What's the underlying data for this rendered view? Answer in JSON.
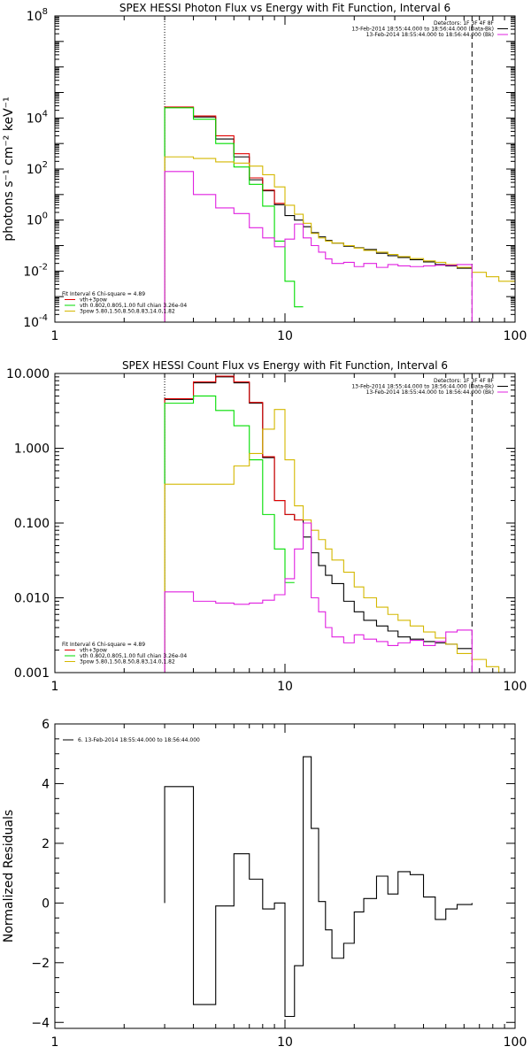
{
  "chart_data": [
    {
      "type": "line",
      "title": "SPEX HESSI Photon Flux vs Energy with Fit Function, Interval 6",
      "ylabel": "photons s⁻¹ cm⁻² keV⁻¹",
      "xlabel": "",
      "xscale": "log",
      "yscale": "log",
      "xlim": [
        1,
        100
      ],
      "ylim": [
        0.0001,
        100000000
      ],
      "xticks": [
        {
          "v": 1,
          "label": "1"
        },
        {
          "v": 10,
          "label": "10"
        },
        {
          "v": 100,
          "label": "100"
        }
      ],
      "yticks": [
        {
          "v": 0.0001,
          "b": "10",
          "e": "-4"
        },
        {
          "v": 0.01,
          "b": "10",
          "e": "-2"
        },
        {
          "v": 1,
          "b": "10",
          "e": "0"
        },
        {
          "v": 100,
          "b": "10",
          "e": "2"
        },
        {
          "v": 10000,
          "b": "10",
          "e": "4"
        },
        {
          "v": 100000000,
          "b": "10",
          "e": "8"
        }
      ],
      "vlines": [
        {
          "x": 3,
          "style": "dotted"
        },
        {
          "x": 65,
          "style": "dashed"
        }
      ],
      "legend_tr": [
        {
          "text": "Detectors: 1F 3F 4F 8F",
          "color": "",
          "line": false
        },
        {
          "text": "13-Feb-2014 18:55:44.000 to 18:56:44.000 (Data-Bk)",
          "color": "#000000",
          "line": true
        },
        {
          "text": "13-Feb-2014 18:55:44.000 to 18:56:44.000 (Bk)",
          "color": "#e020e0",
          "line": true
        }
      ],
      "legend_bl": [
        {
          "text": "Fit Interval  6    Chi-square = 4.89",
          "color": "",
          "line": false
        },
        {
          "text": "vth+3pow",
          "color": "#e00000",
          "line": true
        },
        {
          "text": "vth 0.802,0.805,1.00  full chian 3.26e-04",
          "color": "#00dd00",
          "line": true
        },
        {
          "text": "3pow 5.80,1.50,8.50,8.83,14.0,1.82",
          "color": "#d4b800",
          "line": true
        }
      ],
      "series": [
        {
          "color": "#000000",
          "edges": [
            3,
            4,
            5,
            6,
            7,
            8,
            9,
            10,
            11,
            12,
            13,
            14,
            15,
            16,
            18,
            20,
            22,
            25,
            28,
            31,
            35,
            40,
            45,
            50,
            56,
            65
          ],
          "values": [
            26000,
            11000,
            1500,
            300,
            38,
            14,
            4,
            1.5,
            1.0,
            0.55,
            0.32,
            0.22,
            0.16,
            0.125,
            0.095,
            0.082,
            0.07,
            0.05,
            0.04,
            0.034,
            0.028,
            0.023,
            0.018,
            0.016,
            0.013
          ]
        },
        {
          "color": "#e00000",
          "edges": [
            3,
            4,
            5,
            6,
            7,
            8,
            9,
            10
          ],
          "values": [
            27000,
            12000,
            2000,
            400,
            45,
            15,
            4.5
          ]
        },
        {
          "color": "#00dd00",
          "edges": [
            3,
            4,
            5,
            6,
            7,
            8,
            9,
            10,
            11,
            12
          ],
          "values": [
            25000,
            9000,
            1000,
            120,
            25,
            3.5,
            0.15,
            0.004,
            0.0004
          ]
        },
        {
          "color": "#d4b800",
          "edges": [
            3,
            4,
            5,
            6,
            7,
            8,
            9,
            10,
            11,
            12,
            13,
            14,
            15,
            16,
            18,
            20,
            22,
            25,
            28,
            31,
            35,
            40,
            45,
            50,
            56,
            65,
            75,
            85,
            100
          ],
          "values": [
            300,
            260,
            190,
            170,
            130,
            60,
            20,
            3.8,
            1.7,
            0.75,
            0.3,
            0.2,
            0.15,
            0.125,
            0.1,
            0.08,
            0.065,
            0.055,
            0.045,
            0.037,
            0.031,
            0.025,
            0.022,
            0.018,
            0.014,
            0.009,
            0.006,
            0.004
          ]
        },
        {
          "color": "#e020e0",
          "edges": [
            3,
            4,
            5,
            6,
            7,
            8,
            9,
            10,
            11,
            12,
            13,
            14,
            15,
            16,
            18,
            20,
            22,
            25,
            28,
            31,
            35,
            40,
            45,
            50,
            56,
            65
          ],
          "values": [
            80,
            10,
            3,
            1.8,
            0.5,
            0.2,
            0.09,
            0.18,
            0.7,
            0.2,
            0.1,
            0.055,
            0.03,
            0.02,
            0.022,
            0.015,
            0.02,
            0.014,
            0.018,
            0.016,
            0.015,
            0.016,
            0.017,
            0.017,
            0.018
          ],
          "drop_to_bottom": true
        }
      ]
    },
    {
      "type": "line",
      "title": "SPEX HESSI Count Flux vs Energy with Fit Function, Interval 6",
      "xlabel": "",
      "ylabel": "",
      "xscale": "log",
      "yscale": "log",
      "xlim": [
        1,
        100
      ],
      "ylim": [
        0.001,
        10
      ],
      "xticks": [
        {
          "v": 1,
          "label": "1"
        },
        {
          "v": 10,
          "label": "10"
        },
        {
          "v": 100,
          "label": "100"
        }
      ],
      "yticks": [
        {
          "v": 0.001,
          "label": "0.001"
        },
        {
          "v": 0.01,
          "label": "0.010"
        },
        {
          "v": 0.1,
          "label": "0.100"
        },
        {
          "v": 1,
          "label": "1.000"
        },
        {
          "v": 10,
          "label": "10.000"
        }
      ],
      "vlines": [
        {
          "x": 3,
          "style": "dotted"
        },
        {
          "x": 65,
          "style": "dashed"
        }
      ],
      "legend_tr": [
        {
          "text": "Detectors: 1F 3F 4F 8F",
          "color": "",
          "line": false
        },
        {
          "text": "13-Feb-2014 18:55:44.000 to 18:56:44.000 (Data-Bk)",
          "color": "#000000",
          "line": true
        },
        {
          "text": "13-Feb-2014 18:55:44.000 to 18:56:44.000 (Bk)",
          "color": "#e020e0",
          "line": true
        }
      ],
      "legend_bl": [
        {
          "text": "Fit Interval  6    Chi-square = 4.89",
          "color": "",
          "line": false
        },
        {
          "text": "vth+3pow",
          "color": "#e00000",
          "line": true
        },
        {
          "text": "vth 0.802,0.805,1.00  full chian 3.26e-04",
          "color": "#00dd00",
          "line": true
        },
        {
          "text": "3pow 5.80,1.50,8.50,8.83,14.0,1.82",
          "color": "#d4b800",
          "line": true
        }
      ],
      "series": [
        {
          "color": "#000000",
          "edges": [
            3,
            4,
            5,
            6,
            7,
            8,
            9,
            10,
            11,
            12,
            13,
            14,
            15,
            16,
            18,
            20,
            22,
            25,
            28,
            31,
            35,
            40,
            45,
            50,
            56,
            65
          ],
          "values": [
            4.5,
            7.5,
            9,
            7.5,
            4,
            0.75,
            0.2,
            0.13,
            0.11,
            0.065,
            0.04,
            0.027,
            0.02,
            0.0155,
            0.009,
            0.0065,
            0.005,
            0.0042,
            0.0036,
            0.003,
            0.0028,
            0.0026,
            0.0025,
            0.0024,
            0.0021
          ]
        },
        {
          "color": "#e00000",
          "edges": [
            3,
            4,
            5,
            6,
            7,
            8,
            9,
            10,
            11,
            12
          ],
          "values": [
            4.6,
            7.7,
            9.2,
            7.7,
            4.1,
            0.77,
            0.2,
            0.13,
            0.11
          ]
        },
        {
          "color": "#00dd00",
          "edges": [
            3,
            4,
            5,
            6,
            7,
            8,
            9,
            10,
            11
          ],
          "values": [
            4.0,
            5.0,
            3.2,
            2.0,
            0.7,
            0.13,
            0.045,
            0.016
          ]
        },
        {
          "color": "#d4b800",
          "edges": [
            3,
            4,
            5,
            6,
            7,
            8,
            9,
            10,
            11,
            12,
            13,
            14,
            15,
            16,
            18,
            20,
            22,
            25,
            28,
            31,
            35,
            40,
            45,
            50,
            56,
            65,
            75,
            85,
            100
          ],
          "values": [
            0.33,
            0.33,
            0.33,
            0.58,
            0.85,
            1.8,
            3.3,
            0.7,
            0.17,
            0.11,
            0.08,
            0.06,
            0.045,
            0.032,
            0.022,
            0.014,
            0.01,
            0.0075,
            0.006,
            0.005,
            0.0042,
            0.0035,
            0.0029,
            0.0024,
            0.0018,
            0.0015,
            0.0012,
            0.001
          ]
        },
        {
          "color": "#e020e0",
          "edges": [
            3,
            4,
            5,
            6,
            7,
            8,
            9,
            10,
            11,
            12,
            13,
            14,
            15,
            16,
            18,
            20,
            22,
            25,
            28,
            31,
            35,
            40,
            45,
            50,
            56,
            65
          ],
          "values": [
            0.012,
            0.009,
            0.0085,
            0.0082,
            0.0085,
            0.0093,
            0.011,
            0.018,
            0.045,
            0.1,
            0.01,
            0.0065,
            0.004,
            0.003,
            0.0025,
            0.0032,
            0.0028,
            0.0026,
            0.0023,
            0.0025,
            0.0027,
            0.0023,
            0.0026,
            0.0035,
            0.0037
          ],
          "drop_to_bottom": true
        }
      ]
    },
    {
      "type": "line",
      "title": "",
      "xlabel": "",
      "ylabel": "Normalized Residuals",
      "xscale": "log",
      "yscale": "linear",
      "xlim": [
        1,
        100
      ],
      "ylim": [
        -4.2,
        6
      ],
      "xticks": [
        {
          "v": 1,
          "label": "1"
        },
        {
          "v": 10,
          "label": "10"
        },
        {
          "v": 100,
          "label": "100"
        }
      ],
      "yticks": [
        {
          "v": -4,
          "label": "−4"
        },
        {
          "v": -2,
          "label": "−2"
        },
        {
          "v": 0,
          "label": "0"
        },
        {
          "v": 2,
          "label": "2"
        },
        {
          "v": 4,
          "label": "4"
        },
        {
          "v": 6,
          "label": "6"
        }
      ],
      "vlines": [],
      "legend_tl": [
        {
          "text": "6. 13-Feb-2014 18:55:44.000 to 18:56:44.000",
          "color": "#000000",
          "line": true
        }
      ],
      "series": [
        {
          "color": "#000000",
          "closed": true,
          "edges": [
            3,
            4,
            5,
            6,
            7,
            8,
            9,
            10,
            11,
            12,
            13,
            14,
            15,
            16,
            18,
            20,
            22,
            25,
            28,
            31,
            35,
            40,
            45,
            50,
            56,
            65
          ],
          "values": [
            3.9,
            -3.4,
            -0.1,
            1.65,
            0.8,
            -0.2,
            0.0,
            -3.8,
            -2.1,
            4.9,
            2.5,
            0.05,
            -0.9,
            -1.85,
            -1.35,
            -0.3,
            0.15,
            0.9,
            0.3,
            1.05,
            0.95,
            0.2,
            -0.55,
            -0.2,
            -0.05,
            0.0
          ]
        }
      ]
    }
  ]
}
